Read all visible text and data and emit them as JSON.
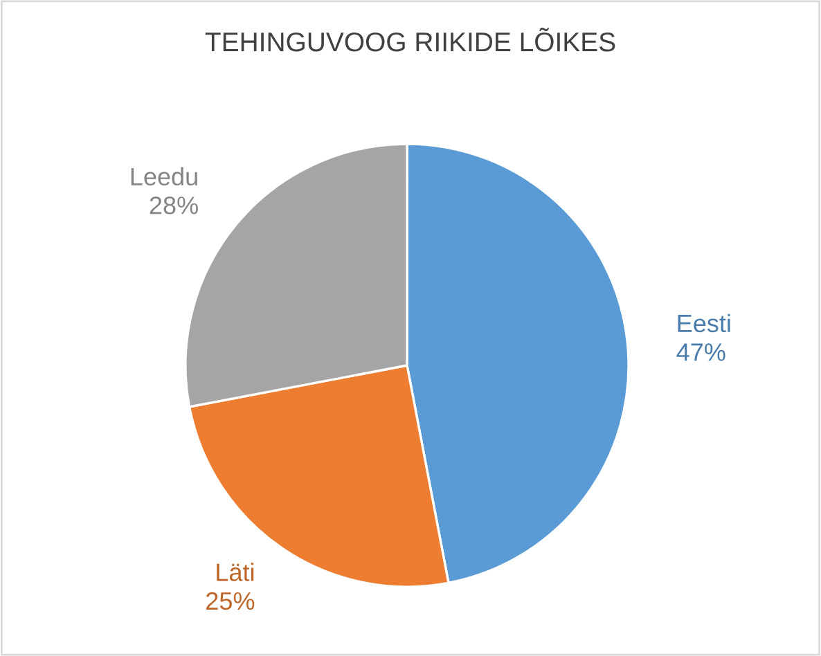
{
  "chart_data": {
    "type": "pie",
    "title": "TEHINGUVOOG RIIKIDE LÕIKES",
    "categories": [
      "Eesti",
      "Läti",
      "Leedu"
    ],
    "values": [
      47,
      25,
      28
    ],
    "colors": [
      "#5b9bd5",
      "#ed7d31",
      "#a5a5a5"
    ],
    "value_labels": [
      "47%",
      "25%",
      "28%"
    ],
    "legend": false
  }
}
